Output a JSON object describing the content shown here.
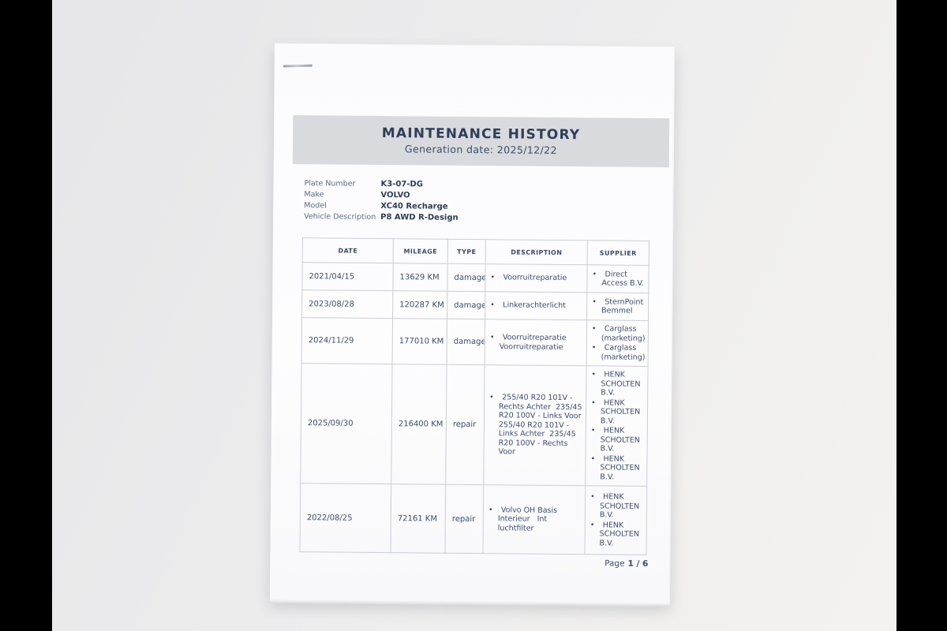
{
  "colors": {
    "bar": "#000000",
    "banner": "#d8dade",
    "border": "#c9cdd6",
    "text": "#3c4b6b",
    "title": "#2f3d58",
    "label": "#5b6a84"
  },
  "document": {
    "title": "MAINTENANCE HISTORY",
    "generation_date": "Generation date: 2025/12/22",
    "info": [
      {
        "label": "Plate Number",
        "value": "K3-07-DG"
      },
      {
        "label": "Make",
        "value": "VOLVO"
      },
      {
        "label": "Model",
        "value": "XC40 Recharge"
      },
      {
        "label": "Vehicle Description",
        "value": "P8 AWD R-Design"
      }
    ],
    "table": {
      "headers": [
        "DATE",
        "MILEAGE",
        "TYPE",
        "DESCRIPTION",
        "SUPPLIER"
      ],
      "rows": [
        {
          "date": "2021/04/15",
          "mileage": "13629 KM",
          "type": "damage",
          "descriptions": [
            "Voorruitreparatie"
          ],
          "suppliers": [
            "Direct Access B.V."
          ]
        },
        {
          "date": "2023/08/28",
          "mileage": "120287 KM",
          "type": "damage",
          "descriptions": [
            "Linkerachterlicht"
          ],
          "suppliers": [
            "SternPoint Bemmel"
          ]
        },
        {
          "date": "2024/11/29",
          "mileage": "177010 KM",
          "type": "damage",
          "descriptions": [
            "Voorruitreparatie Voorruitreparatie"
          ],
          "suppliers": [
            "Carglass (marketing)",
            "Carglass (marketing)"
          ]
        },
        {
          "date": "2025/09/30",
          "mileage": "216400 KM",
          "type": "repair",
          "descriptions": [
            "255/40 R20 101V - Rechts Achter  235/45 R20 100V - Links Voor 255/40 R20 101V - Links Achter  235/45 R20 100V - Rechts Voor"
          ],
          "suppliers": [
            "HENK SCHOLTEN B.V.",
            "HENK SCHOLTEN B.V.",
            "HENK SCHOLTEN B.V.",
            "HENK SCHOLTEN B.V."
          ]
        },
        {
          "date": "2022/08/25",
          "mileage": "72161 KM",
          "type": "repair",
          "descriptions": [
            "Volvo OH Basis Interieur   Int luchtfilter"
          ],
          "suppliers": [
            "HENK SCHOLTEN B.V.",
            "HENK SCHOLTEN B.V."
          ]
        }
      ]
    },
    "footer": {
      "page_label": "Page",
      "page_value": "1 / 6"
    }
  }
}
